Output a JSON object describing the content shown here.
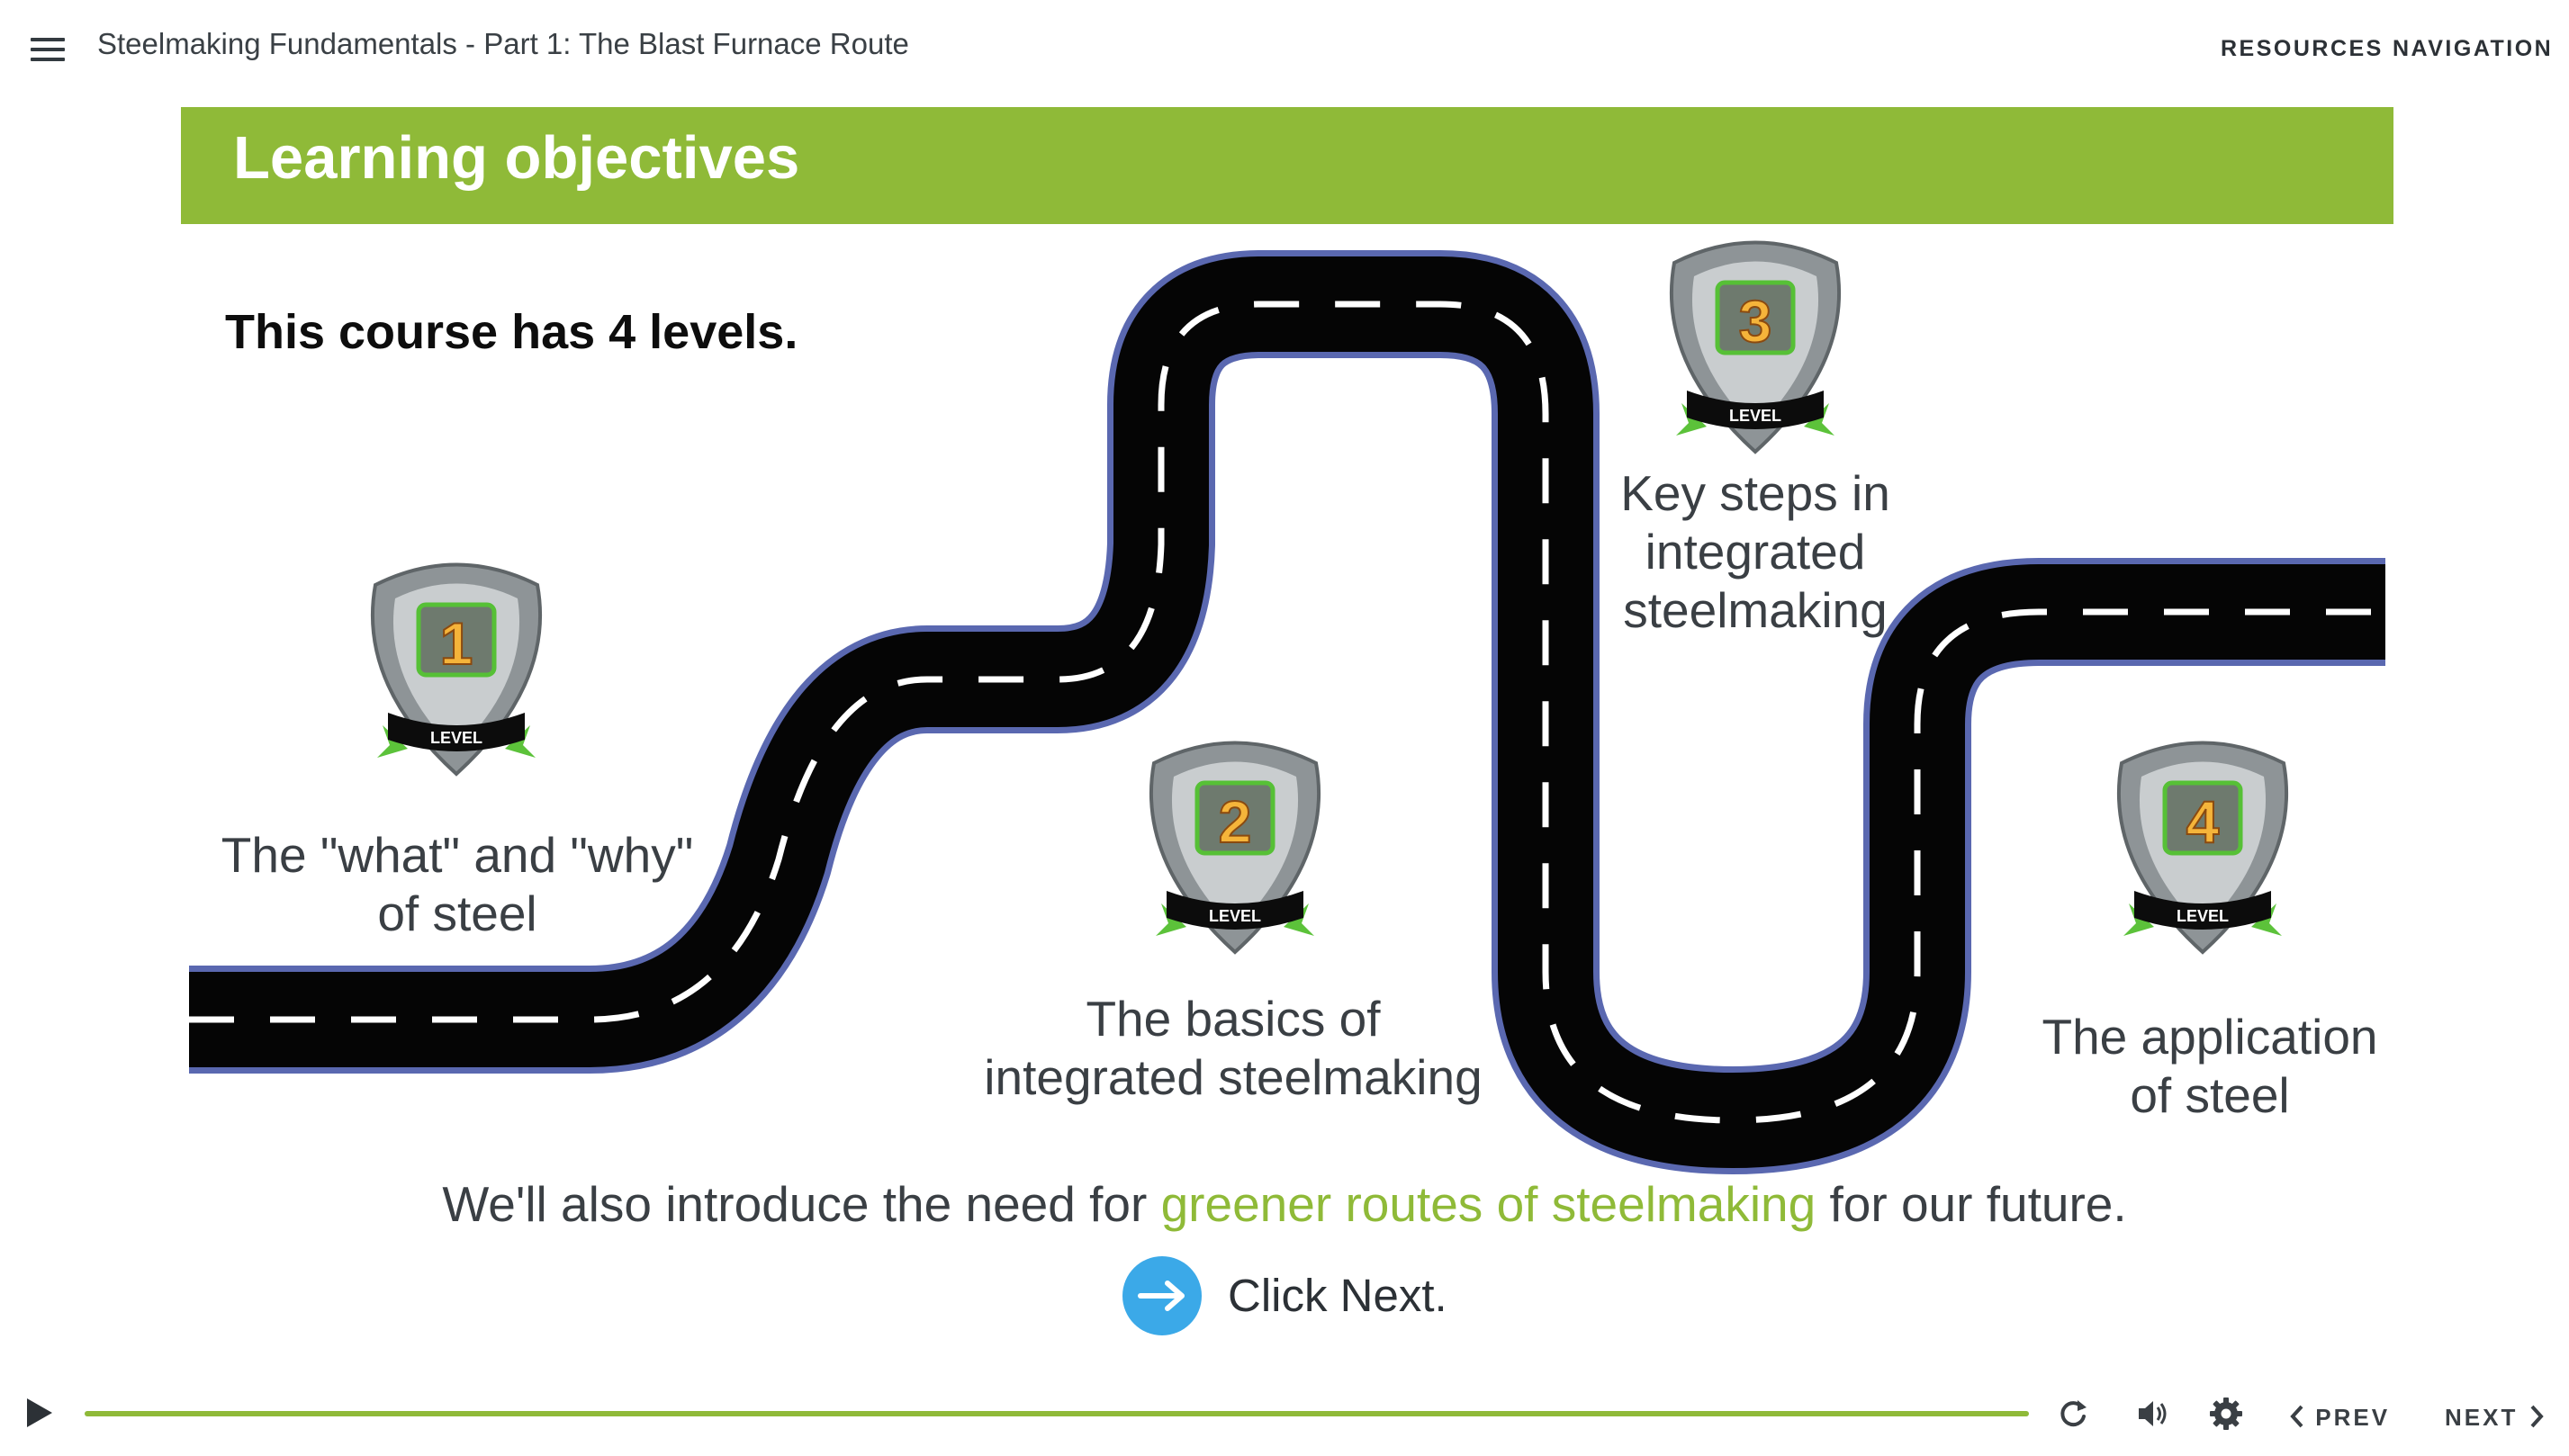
{
  "topbar": {
    "course_title": "Steelmaking Fundamentals - Part 1: The Blast Furnace Route",
    "resources_label": "RESOURCES",
    "navigation_label": "NAVIGATION"
  },
  "slide": {
    "title": "Learning objectives",
    "subtitle": "This course has 4 levels.",
    "levels": [
      {
        "number": "1",
        "badge": "LEVEL",
        "label_lines": [
          "The \"what\" and \"why\"",
          "of steel"
        ]
      },
      {
        "number": "2",
        "badge": "LEVEL",
        "label_lines": [
          "The basics of",
          "integrated steelmaking"
        ]
      },
      {
        "number": "3",
        "badge": "LEVEL",
        "label_lines": [
          "Key steps in",
          "integrated",
          "steelmaking"
        ]
      },
      {
        "number": "4",
        "badge": "LEVEL",
        "label_lines": [
          "The application",
          "of steel"
        ]
      }
    ],
    "footer_before": "We'll also introduce the need for ",
    "footer_highlight": "greener routes of steelmaking",
    "footer_after": " for our future.",
    "click_next": "Click Next."
  },
  "controls": {
    "progress_fraction": 1.0,
    "prev_label": "PREV",
    "next_label": "NEXT",
    "icons": [
      "play-icon",
      "replay-icon",
      "volume-icon",
      "settings-icon",
      "chevron-left-icon",
      "chevron-right-icon"
    ]
  },
  "colors": {
    "accent_green": "#8fba38",
    "road_edge": "#5a68b0",
    "next_button_blue": "#3ba9e8"
  }
}
